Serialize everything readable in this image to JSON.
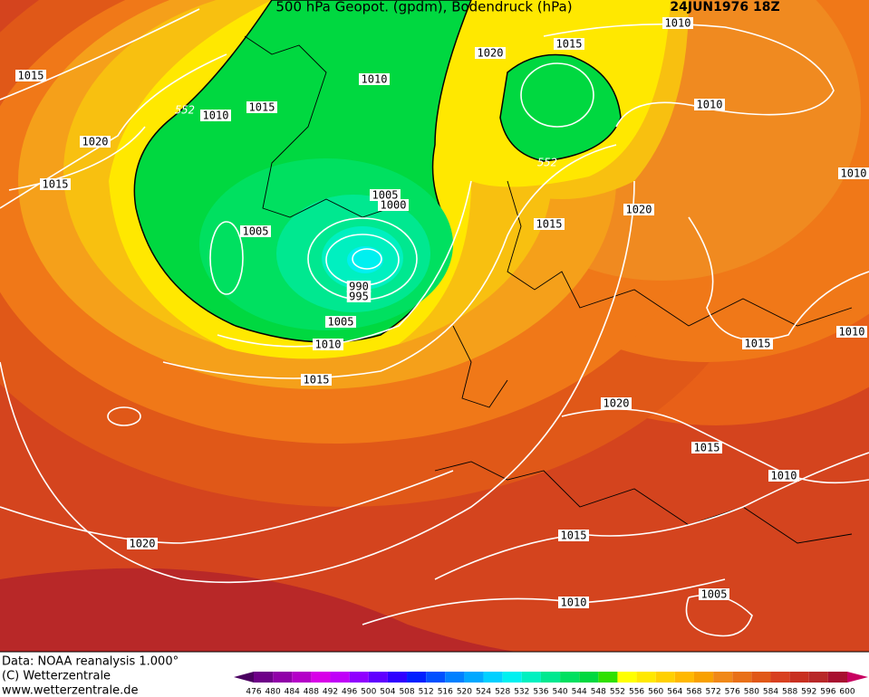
{
  "header": {
    "title": "500 hPa Geopot. (gpdm), Bodendruck (hPa)",
    "date": "24JUN1976 18Z"
  },
  "isobar_labels": [
    "1015",
    "1020",
    "1015",
    "552",
    "1010",
    "1015",
    "1010",
    "1020",
    "1015",
    "1010",
    "1010",
    "552",
    "1015",
    "1020",
    "1010",
    "1005",
    "1000",
    "1005",
    "990",
    "995",
    "1005",
    "1010",
    "1015",
    "1015",
    "1010",
    "1020",
    "1015",
    "1010",
    "1020",
    "1015",
    "1010",
    "1005"
  ],
  "credits": [
    "Data: NOAA reanalysis 1.000°",
    "(C) Wetterzentrale",
    "www.wetterzentrale.de"
  ],
  "legend": {
    "levels": [
      476,
      480,
      484,
      488,
      492,
      496,
      500,
      504,
      508,
      512,
      516,
      520,
      524,
      528,
      532,
      536,
      540,
      544,
      548,
      552,
      556,
      560,
      564,
      568,
      572,
      576,
      580,
      584,
      588,
      592,
      596,
      600
    ],
    "colors": [
      "#4a0060",
      "#6e0088",
      "#9000a8",
      "#b400c8",
      "#d800e8",
      "#c000f8",
      "#9000ff",
      "#6000ff",
      "#3000ff",
      "#0020ff",
      "#0050ff",
      "#0080ff",
      "#00a8ff",
      "#00d0ff",
      "#00f0f0",
      "#00f0c0",
      "#00e890",
      "#00e060",
      "#00d840",
      "#30e000",
      "#ffff00",
      "#ffe800",
      "#ffd000",
      "#ffb800",
      "#f8a000",
      "#f08818",
      "#e87018",
      "#e05818",
      "#d84020",
      "#c83020",
      "#b82828",
      "#a81030",
      "#c80060"
    ]
  }
}
